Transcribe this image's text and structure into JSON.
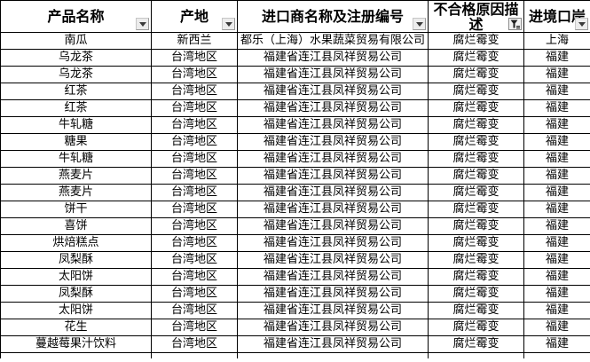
{
  "table": {
    "columns": [
      {
        "key": "product-name",
        "label": "产品名称",
        "filter_icon": "dropdown-arrow-icon"
      },
      {
        "key": "origin",
        "label": "产地",
        "filter_icon": "dropdown-arrow-icon"
      },
      {
        "key": "importer",
        "label": "进口商名称及注册编号",
        "filter_icon": "dropdown-arrow-icon"
      },
      {
        "key": "defect-reason",
        "label": "不合格原因描述",
        "filter_icon": "filter-funnel-active-icon"
      },
      {
        "key": "entry-port",
        "label": "进境口岸",
        "filter_icon": "dropdown-arrow-icon"
      }
    ],
    "rows": [
      [
        "南瓜",
        "新西兰",
        "都乐（上海）水果蔬菜贸易有限公司",
        "腐烂霉变",
        "上海"
      ],
      [
        "乌龙茶",
        "台湾地区",
        "福建省连江县凤祥贸易公司",
        "腐烂霉变",
        "福建"
      ],
      [
        "乌龙茶",
        "台湾地区",
        "福建省连江县凤祥贸易公司",
        "腐烂霉变",
        "福建"
      ],
      [
        "红茶",
        "台湾地区",
        "福建省连江县凤祥贸易公司",
        "腐烂霉变",
        "福建"
      ],
      [
        "红茶",
        "台湾地区",
        "福建省连江县凤祥贸易公司",
        "腐烂霉变",
        "福建"
      ],
      [
        "牛轧糖",
        "台湾地区",
        "福建省连江县凤祥贸易公司",
        "腐烂霉变",
        "福建"
      ],
      [
        "糖果",
        "台湾地区",
        "福建省连江县凤祥贸易公司",
        "腐烂霉变",
        "福建"
      ],
      [
        "牛轧糖",
        "台湾地区",
        "福建省连江县凤祥贸易公司",
        "腐烂霉变",
        "福建"
      ],
      [
        "燕麦片",
        "台湾地区",
        "福建省连江县凤祥贸易公司",
        "腐烂霉变",
        "福建"
      ],
      [
        "燕麦片",
        "台湾地区",
        "福建省连江县凤祥贸易公司",
        "腐烂霉变",
        "福建"
      ],
      [
        "饼干",
        "台湾地区",
        "福建省连江县凤祥贸易公司",
        "腐烂霉变",
        "福建"
      ],
      [
        "喜饼",
        "台湾地区",
        "福建省连江县凤祥贸易公司",
        "腐烂霉变",
        "福建"
      ],
      [
        "烘焙糕点",
        "台湾地区",
        "福建省连江县凤祥贸易公司",
        "腐烂霉变",
        "福建"
      ],
      [
        "凤梨酥",
        "台湾地区",
        "福建省连江县凤祥贸易公司",
        "腐烂霉变",
        "福建"
      ],
      [
        "太阳饼",
        "台湾地区",
        "福建省连江县凤祥贸易公司",
        "腐烂霉变",
        "福建"
      ],
      [
        "凤梨酥",
        "台湾地区",
        "福建省连江县凤祥贸易公司",
        "腐烂霉变",
        "福建"
      ],
      [
        "太阳饼",
        "台湾地区",
        "福建省连江县凤祥贸易公司",
        "腐烂霉变",
        "福建"
      ],
      [
        "花生",
        "台湾地区",
        "福建省连江县凤祥贸易公司",
        "腐烂霉变",
        "福建"
      ],
      [
        "蔓越莓果汁饮料",
        "台湾地区",
        "福建省连江县凤祥贸易公司",
        "腐烂霉变",
        "福建"
      ]
    ]
  },
  "colors": {
    "grid_border": "#000000",
    "text": "#000000",
    "background": "#ffffff",
    "filter_button_bg": "#ececec",
    "funnel_glyph": "#222222"
  }
}
